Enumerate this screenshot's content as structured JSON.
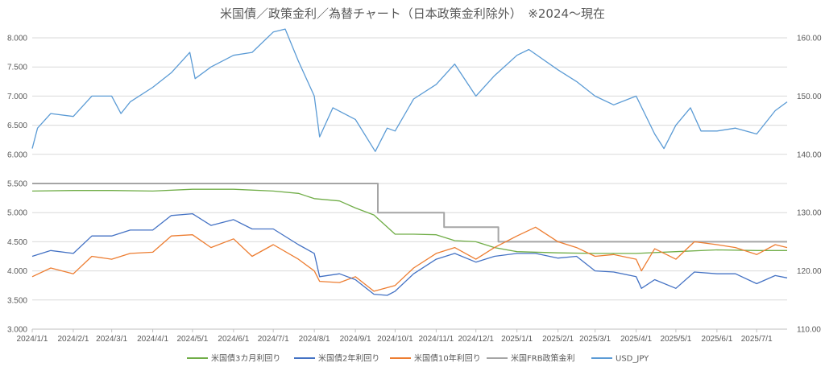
{
  "chart_data": {
    "type": "line",
    "title": "米国債／政策金利／為替チャート（日本政策金利除外）　※2024～現在",
    "x_ticks": [
      "2024/1/1",
      "2024/2/1",
      "2024/3/1",
      "2024/4/1",
      "2024/5/1",
      "2024/6/1",
      "2024/7/1",
      "2024/8/1",
      "2024/9/1",
      "2024/10/1",
      "2024/11/1",
      "2024/12/1",
      "2025/1/1",
      "2025/2/1",
      "2025/3/1",
      "2025/4/1",
      "2025/5/1",
      "2025/6/1",
      "2025/7/1"
    ],
    "y_left_ticks": [
      "8.000",
      "7.500",
      "7.000",
      "6.500",
      "6.000",
      "5.500",
      "5.000",
      "4.500",
      "4.000",
      "3.500",
      "3.000"
    ],
    "y_right_ticks": [
      "160.00",
      "150.00",
      "140.00",
      "130.00",
      "120.00",
      "110.00"
    ],
    "ylim_left": [
      3.0,
      8.0
    ],
    "ylim_right": [
      110,
      160
    ],
    "xlim": [
      "2024/1/1",
      "2025/7/24"
    ],
    "grid": "horizontal",
    "legend_position": "bottom",
    "series": [
      {
        "name": "米国債3カ月利回り",
        "axis": "left",
        "color": "#70ad47",
        "points": [
          [
            "2024/1/1",
            5.37
          ],
          [
            "2024/2/1",
            5.38
          ],
          [
            "2024/3/1",
            5.38
          ],
          [
            "2024/4/1",
            5.37
          ],
          [
            "2024/5/1",
            5.4
          ],
          [
            "2024/6/1",
            5.4
          ],
          [
            "2024/7/1",
            5.37
          ],
          [
            "2024/7/20",
            5.33
          ],
          [
            "2024/8/1",
            5.24
          ],
          [
            "2024/8/20",
            5.2
          ],
          [
            "2024/9/1",
            5.08
          ],
          [
            "2024/9/15",
            4.96
          ],
          [
            "2024/10/1",
            4.63
          ],
          [
            "2024/10/15",
            4.63
          ],
          [
            "2024/11/1",
            4.62
          ],
          [
            "2024/11/15",
            4.52
          ],
          [
            "2024/12/1",
            4.5
          ],
          [
            "2024/12/15",
            4.4
          ],
          [
            "2025/1/1",
            4.33
          ],
          [
            "2025/2/1",
            4.31
          ],
          [
            "2025/3/1",
            4.3
          ],
          [
            "2025/4/1",
            4.3
          ],
          [
            "2025/5/1",
            4.33
          ],
          [
            "2025/6/1",
            4.36
          ],
          [
            "2025/7/1",
            4.35
          ],
          [
            "2025/7/24",
            4.35
          ]
        ]
      },
      {
        "name": "米国債2年利回り",
        "axis": "left",
        "color": "#4472c4",
        "points": [
          [
            "2024/1/1",
            4.25
          ],
          [
            "2024/1/15",
            4.35
          ],
          [
            "2024/2/1",
            4.3
          ],
          [
            "2024/2/15",
            4.6
          ],
          [
            "2024/3/1",
            4.6
          ],
          [
            "2024/3/15",
            4.7
          ],
          [
            "2024/4/1",
            4.7
          ],
          [
            "2024/4/15",
            4.95
          ],
          [
            "2024/5/1",
            4.98
          ],
          [
            "2024/5/15",
            4.78
          ],
          [
            "2024/6/1",
            4.88
          ],
          [
            "2024/6/15",
            4.72
          ],
          [
            "2024/7/1",
            4.72
          ],
          [
            "2024/7/20",
            4.45
          ],
          [
            "2024/8/1",
            4.3
          ],
          [
            "2024/8/5",
            3.9
          ],
          [
            "2024/8/20",
            3.95
          ],
          [
            "2024/9/1",
            3.85
          ],
          [
            "2024/9/15",
            3.6
          ],
          [
            "2024/9/25",
            3.58
          ],
          [
            "2024/10/1",
            3.65
          ],
          [
            "2024/10/15",
            3.95
          ],
          [
            "2024/11/1",
            4.2
          ],
          [
            "2024/11/15",
            4.3
          ],
          [
            "2024/12/1",
            4.15
          ],
          [
            "2024/12/15",
            4.25
          ],
          [
            "2025/1/1",
            4.3
          ],
          [
            "2025/1/15",
            4.3
          ],
          [
            "2025/2/1",
            4.22
          ],
          [
            "2025/2/15",
            4.25
          ],
          [
            "2025/3/1",
            4.0
          ],
          [
            "2025/3/15",
            3.98
          ],
          [
            "2025/4/1",
            3.9
          ],
          [
            "2025/4/5",
            3.7
          ],
          [
            "2025/4/15",
            3.85
          ],
          [
            "2025/5/1",
            3.7
          ],
          [
            "2025/5/15",
            3.98
          ],
          [
            "2025/6/1",
            3.95
          ],
          [
            "2025/6/15",
            3.95
          ],
          [
            "2025/7/1",
            3.78
          ],
          [
            "2025/7/15",
            3.92
          ],
          [
            "2025/7/24",
            3.88
          ]
        ]
      },
      {
        "name": "米国債10年利回り",
        "axis": "left",
        "color": "#ed7d31",
        "points": [
          [
            "2024/1/1",
            3.9
          ],
          [
            "2024/1/15",
            4.05
          ],
          [
            "2024/2/1",
            3.95
          ],
          [
            "2024/2/15",
            4.25
          ],
          [
            "2024/3/1",
            4.2
          ],
          [
            "2024/3/15",
            4.3
          ],
          [
            "2024/4/1",
            4.32
          ],
          [
            "2024/4/15",
            4.6
          ],
          [
            "2024/5/1",
            4.62
          ],
          [
            "2024/5/15",
            4.4
          ],
          [
            "2024/6/1",
            4.55
          ],
          [
            "2024/6/15",
            4.25
          ],
          [
            "2024/7/1",
            4.45
          ],
          [
            "2024/7/20",
            4.2
          ],
          [
            "2024/8/1",
            4.0
          ],
          [
            "2024/8/5",
            3.82
          ],
          [
            "2024/8/20",
            3.8
          ],
          [
            "2024/9/1",
            3.9
          ],
          [
            "2024/9/15",
            3.65
          ],
          [
            "2024/10/1",
            3.75
          ],
          [
            "2024/10/15",
            4.05
          ],
          [
            "2024/11/1",
            4.3
          ],
          [
            "2024/11/15",
            4.4
          ],
          [
            "2024/12/1",
            4.2
          ],
          [
            "2024/12/15",
            4.4
          ],
          [
            "2025/1/1",
            4.6
          ],
          [
            "2025/1/15",
            4.75
          ],
          [
            "2025/2/1",
            4.5
          ],
          [
            "2025/2/15",
            4.4
          ],
          [
            "2025/3/1",
            4.25
          ],
          [
            "2025/3/15",
            4.28
          ],
          [
            "2025/4/1",
            4.2
          ],
          [
            "2025/4/5",
            4.0
          ],
          [
            "2025/4/15",
            4.38
          ],
          [
            "2025/5/1",
            4.2
          ],
          [
            "2025/5/15",
            4.5
          ],
          [
            "2025/6/1",
            4.45
          ],
          [
            "2025/6/15",
            4.4
          ],
          [
            "2025/7/1",
            4.28
          ],
          [
            "2025/7/15",
            4.45
          ],
          [
            "2025/7/24",
            4.4
          ]
        ]
      },
      {
        "name": "米国FRB政策金利",
        "axis": "left",
        "color": "#a5a5a5",
        "step": true,
        "points": [
          [
            "2024/1/1",
            5.5
          ],
          [
            "2024/9/18",
            5.0
          ],
          [
            "2024/11/7",
            4.75
          ],
          [
            "2024/12/18",
            4.5
          ],
          [
            "2025/7/24",
            4.5
          ]
        ]
      },
      {
        "name": "USD_JPY",
        "axis": "right",
        "color": "#5b9bd5",
        "points": [
          [
            "2024/1/1",
            141.0
          ],
          [
            "2024/1/5",
            144.5
          ],
          [
            "2024/1/15",
            147.0
          ],
          [
            "2024/2/1",
            146.5
          ],
          [
            "2024/2/15",
            150.0
          ],
          [
            "2024/3/1",
            150.0
          ],
          [
            "2024/3/8",
            147.0
          ],
          [
            "2024/3/15",
            149.0
          ],
          [
            "2024/4/1",
            151.5
          ],
          [
            "2024/4/15",
            154.0
          ],
          [
            "2024/4/29",
            157.5
          ],
          [
            "2024/5/3",
            153.0
          ],
          [
            "2024/5/15",
            155.0
          ],
          [
            "2024/6/1",
            157.0
          ],
          [
            "2024/6/15",
            157.5
          ],
          [
            "2024/7/1",
            161.0
          ],
          [
            "2024/7/10",
            161.5
          ],
          [
            "2024/7/20",
            156.0
          ],
          [
            "2024/8/1",
            150.0
          ],
          [
            "2024/8/5",
            143.0
          ],
          [
            "2024/8/15",
            148.0
          ],
          [
            "2024/9/1",
            146.0
          ],
          [
            "2024/9/16",
            140.5
          ],
          [
            "2024/9/25",
            144.5
          ],
          [
            "2024/10/1",
            144.0
          ],
          [
            "2024/10/15",
            149.5
          ],
          [
            "2024/11/1",
            152.0
          ],
          [
            "2024/11/15",
            155.5
          ],
          [
            "2024/12/1",
            150.0
          ],
          [
            "2024/12/15",
            153.5
          ],
          [
            "2025/1/1",
            157.0
          ],
          [
            "2025/1/10",
            158.0
          ],
          [
            "2025/2/1",
            154.5
          ],
          [
            "2025/2/15",
            152.5
          ],
          [
            "2025/3/1",
            150.0
          ],
          [
            "2025/3/15",
            148.5
          ],
          [
            "2025/4/1",
            150.0
          ],
          [
            "2025/4/15",
            143.5
          ],
          [
            "2025/4/22",
            141.0
          ],
          [
            "2025/5/1",
            145.0
          ],
          [
            "2025/5/12",
            148.0
          ],
          [
            "2025/5/20",
            144.0
          ],
          [
            "2025/6/1",
            144.0
          ],
          [
            "2025/6/15",
            144.5
          ],
          [
            "2025/7/1",
            143.5
          ],
          [
            "2025/7/15",
            147.5
          ],
          [
            "2025/7/24",
            149.0
          ]
        ]
      }
    ]
  }
}
